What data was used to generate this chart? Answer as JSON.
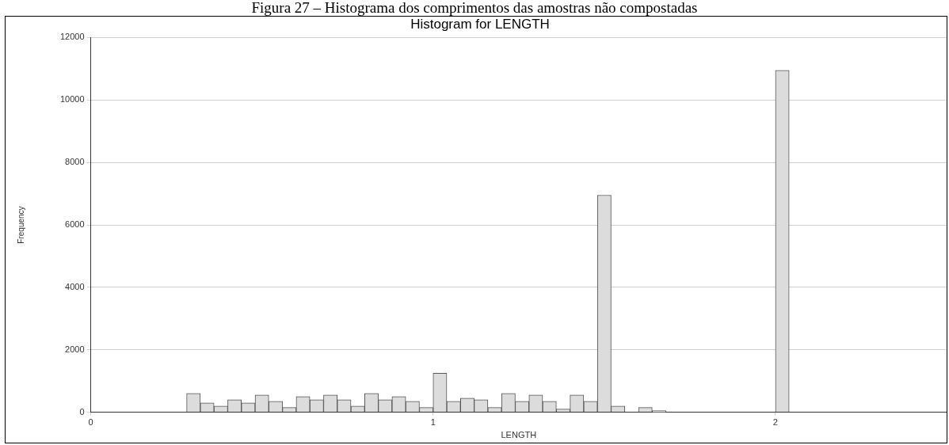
{
  "chart_data": {
    "type": "histogram",
    "title": "Histogram for LENGTH",
    "xlabel": "LENGTH",
    "ylabel": "Frequency",
    "annotations": [
      "Figura 27 – Histograma dos comprimentos das amostras não compostadas"
    ],
    "bins": [
      0.28,
      0.32,
      0.36,
      0.4,
      0.44,
      0.48,
      0.52,
      0.56,
      0.6,
      0.64,
      0.68,
      0.72,
      0.76,
      0.8,
      0.84,
      0.88,
      0.92,
      0.96,
      1.0,
      1.04,
      1.08,
      1.12,
      1.16,
      1.2,
      1.24,
      1.28,
      1.32,
      1.36,
      1.4,
      1.44,
      1.48,
      1.52,
      1.56,
      1.6,
      1.64,
      1.68,
      1.72,
      1.76,
      1.8,
      1.84,
      1.88,
      1.92,
      1.96,
      2.0,
      2.04,
      2.08,
      2.12,
      2.16,
      2.2,
      2.24,
      2.28,
      2.32,
      2.36,
      2.4
    ],
    "values": [
      600,
      300,
      200,
      400,
      300,
      550,
      350,
      150,
      500,
      400,
      550,
      400,
      200,
      600,
      400,
      500,
      350,
      150,
      1250,
      350,
      450,
      400,
      150,
      600,
      350,
      550,
      350,
      100,
      550,
      350,
      6950,
      200,
      0,
      150,
      50,
      0,
      0,
      0,
      0,
      0,
      0,
      0,
      0,
      10950,
      0,
      0,
      0,
      0,
      0,
      0,
      0,
      0,
      0
    ],
    "color": "#dcdcdc",
    "xlim": [
      0,
      2.5
    ],
    "xticks": [
      0,
      1,
      2
    ],
    "ylim": [
      0,
      12000
    ],
    "yticks": [
      0,
      2000,
      4000,
      6000,
      8000,
      10000,
      12000
    ],
    "grid": "y"
  }
}
